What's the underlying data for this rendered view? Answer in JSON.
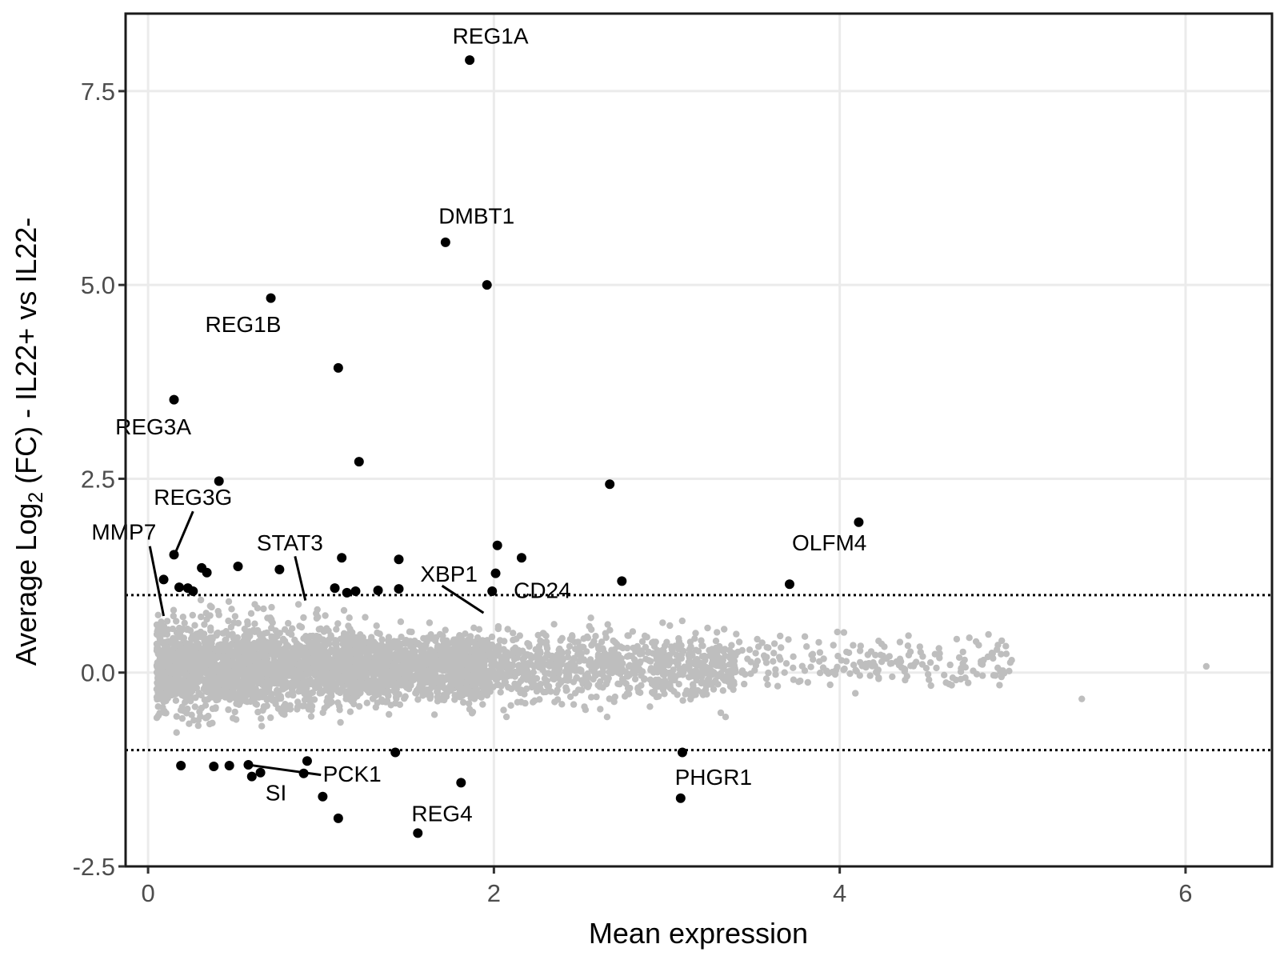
{
  "chart_data": {
    "type": "scatter",
    "xlabel": "Mean expression",
    "ylabel": {
      "prefix": "Average Log",
      "subscript": "2",
      "suffix": " (FC) - IL22+ vs IL22-"
    },
    "xlim": [
      -0.13,
      6.5
    ],
    "ylim": [
      -2.5,
      8.5
    ],
    "x_ticks": [
      {
        "value": 0,
        "label": "0"
      },
      {
        "value": 2,
        "label": "2"
      },
      {
        "value": 4,
        "label": "4"
      },
      {
        "value": 6,
        "label": "6"
      }
    ],
    "y_ticks": [
      {
        "value": -2.5,
        "label": "-2.5"
      },
      {
        "value": 0.0,
        "label": "0.0"
      },
      {
        "value": 2.5,
        "label": "2.5"
      },
      {
        "value": 5.0,
        "label": "5.0"
      },
      {
        "value": 7.5,
        "label": "7.5"
      }
    ],
    "grid": true,
    "thresholds": [
      1,
      -1
    ],
    "colors": {
      "significant": "#000000",
      "background": "#bebebe",
      "grid": "#ebebeb",
      "threshold": "#000000"
    },
    "significant_points": [
      {
        "x": 1.86,
        "y": 7.9
      },
      {
        "x": 1.72,
        "y": 5.55
      },
      {
        "x": 1.96,
        "y": 5.0
      },
      {
        "x": 0.71,
        "y": 4.83
      },
      {
        "x": 1.1,
        "y": 3.93
      },
      {
        "x": 0.15,
        "y": 3.52
      },
      {
        "x": 1.22,
        "y": 2.72
      },
      {
        "x": 0.41,
        "y": 2.47
      },
      {
        "x": 2.67,
        "y": 2.43
      },
      {
        "x": 4.11,
        "y": 1.94
      },
      {
        "x": 2.02,
        "y": 1.64
      },
      {
        "x": 0.15,
        "y": 1.52
      },
      {
        "x": 1.12,
        "y": 1.48
      },
      {
        "x": 2.16,
        "y": 1.48
      },
      {
        "x": 1.45,
        "y": 1.46
      },
      {
        "x": 0.52,
        "y": 1.37
      },
      {
        "x": 0.31,
        "y": 1.35
      },
      {
        "x": 0.76,
        "y": 1.33
      },
      {
        "x": 0.34,
        "y": 1.29
      },
      {
        "x": 2.01,
        "y": 1.28
      },
      {
        "x": 0.09,
        "y": 1.2
      },
      {
        "x": 2.74,
        "y": 1.18
      },
      {
        "x": 3.71,
        "y": 1.14
      },
      {
        "x": 0.18,
        "y": 1.1
      },
      {
        "x": 0.23,
        "y": 1.09
      },
      {
        "x": 1.08,
        "y": 1.09
      },
      {
        "x": 1.45,
        "y": 1.08
      },
      {
        "x": 0.26,
        "y": 1.05
      },
      {
        "x": 1.33,
        "y": 1.06
      },
      {
        "x": 1.2,
        "y": 1.05
      },
      {
        "x": 1.15,
        "y": 1.03
      },
      {
        "x": 1.99,
        "y": 1.05
      },
      {
        "x": 1.43,
        "y": -1.03
      },
      {
        "x": 3.09,
        "y": -1.03
      },
      {
        "x": 0.92,
        "y": -1.14
      },
      {
        "x": 0.19,
        "y": -1.2
      },
      {
        "x": 0.38,
        "y": -1.21
      },
      {
        "x": 0.47,
        "y": -1.2
      },
      {
        "x": 0.58,
        "y": -1.19
      },
      {
        "x": 0.65,
        "y": -1.29
      },
      {
        "x": 0.9,
        "y": -1.3
      },
      {
        "x": 0.6,
        "y": -1.34
      },
      {
        "x": 1.81,
        "y": -1.42
      },
      {
        "x": 1.01,
        "y": -1.6
      },
      {
        "x": 3.08,
        "y": -1.62
      },
      {
        "x": 1.1,
        "y": -1.88
      },
      {
        "x": 1.56,
        "y": -2.07
      }
    ],
    "annotations": [
      {
        "text": "REG1A",
        "x": 1.98,
        "y": 8.19
      },
      {
        "text": "DMBT1",
        "x": 1.9,
        "y": 5.87
      },
      {
        "text": "REG1B",
        "x": 0.55,
        "y": 4.47
      },
      {
        "text": "REG3A",
        "x": 0.03,
        "y": 3.15
      },
      {
        "text": "REG3G",
        "x": 0.26,
        "y": 2.24
      },
      {
        "text": "MMP7",
        "x": -0.14,
        "y": 1.79
      },
      {
        "text": "STAT3",
        "x": 0.82,
        "y": 1.65
      },
      {
        "text": "XBP1",
        "x": 1.74,
        "y": 1.25
      },
      {
        "text": "CD24",
        "x": 2.28,
        "y": 1.04
      },
      {
        "text": "OLFM4",
        "x": 3.94,
        "y": 1.65
      },
      {
        "text": "PCK1",
        "x": 1.18,
        "y": -1.33
      },
      {
        "text": "SI",
        "x": 0.74,
        "y": -1.57
      },
      {
        "text": "REG4",
        "x": 1.7,
        "y": -1.84
      },
      {
        "text": "PHGR1",
        "x": 3.27,
        "y": -1.37
      }
    ],
    "leader_lines": [
      {
        "x1": 0.26,
        "y1": 2.08,
        "x2": 0.155,
        "y2": 1.53
      },
      {
        "x1": 0.01,
        "y1": 1.63,
        "x2": 0.09,
        "y2": 0.73
      },
      {
        "x1": 0.85,
        "y1": 1.5,
        "x2": 0.91,
        "y2": 0.93
      },
      {
        "x1": 1.7,
        "y1": 1.12,
        "x2": 1.94,
        "y2": 0.77
      },
      {
        "x1": 1.0,
        "y1": -1.32,
        "x2": 0.58,
        "y2": -1.19
      }
    ]
  }
}
